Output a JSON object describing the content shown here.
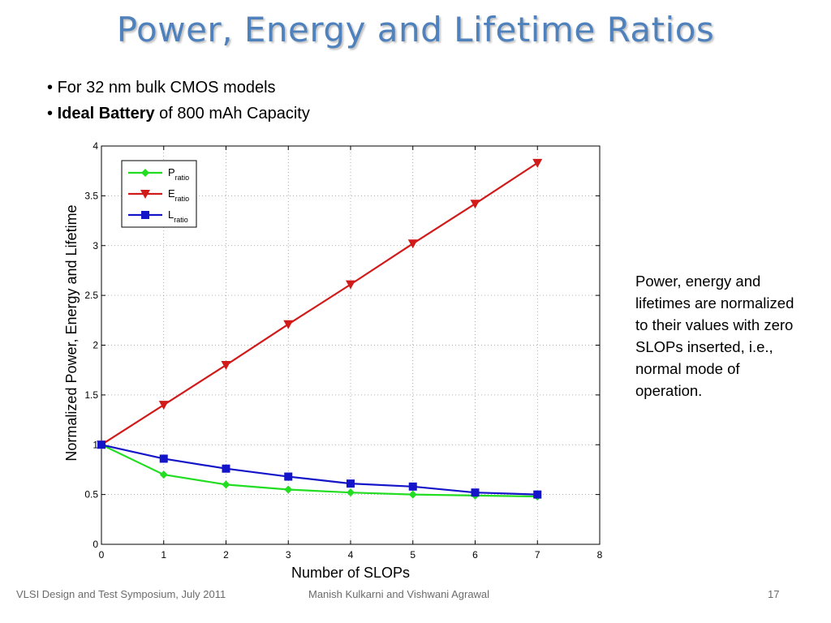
{
  "slide": {
    "title": "Power, Energy and Lifetime Ratios",
    "bullets": [
      {
        "prefix": "",
        "bold": "",
        "text": "For 32 nm bulk CMOS models"
      },
      {
        "prefix": "",
        "bold": "Ideal Battery",
        "text": " of 800 mAh Capacity"
      }
    ],
    "note": "Power, energy and lifetimes are normalized to their values with zero SLOPs inserted, i.e., normal mode of operation.",
    "footer": {
      "left": "VLSI Design and Test Symposium, July 2011",
      "center": "Manish Kulkarni and Vishwani Agrawal",
      "page": "17"
    }
  },
  "chart_data": {
    "type": "line",
    "xlabel": "Number of SLOPs",
    "ylabel": "Normalized Power, Energy and Lifetime",
    "xlim": [
      0,
      8
    ],
    "ylim": [
      0,
      4
    ],
    "xticks": [
      "0",
      "1",
      "2",
      "3",
      "4",
      "5",
      "6",
      "7",
      "8"
    ],
    "yticks": [
      "0",
      "0.5",
      "1",
      "1.5",
      "2",
      "2.5",
      "3",
      "3.5",
      "4"
    ],
    "grid": true,
    "legend_position": "top-left",
    "x": [
      0,
      1,
      2,
      3,
      4,
      5,
      6,
      7
    ],
    "series": [
      {
        "name": "P",
        "subscript": "ratio",
        "color": "#22dd22",
        "marker": "diamond",
        "values": [
          1.0,
          0.7,
          0.6,
          0.55,
          0.52,
          0.5,
          0.49,
          0.48
        ]
      },
      {
        "name": "E",
        "subscript": "ratio",
        "color": "#d11a1a",
        "marker": "triangle-down",
        "values": [
          1.0,
          1.4,
          1.8,
          2.21,
          2.61,
          3.02,
          3.42,
          3.83
        ]
      },
      {
        "name": "L",
        "subscript": "ratio",
        "color": "#1414c8",
        "marker": "square",
        "values": [
          1.0,
          0.86,
          0.76,
          0.68,
          0.61,
          0.58,
          0.52,
          0.5
        ]
      }
    ]
  }
}
